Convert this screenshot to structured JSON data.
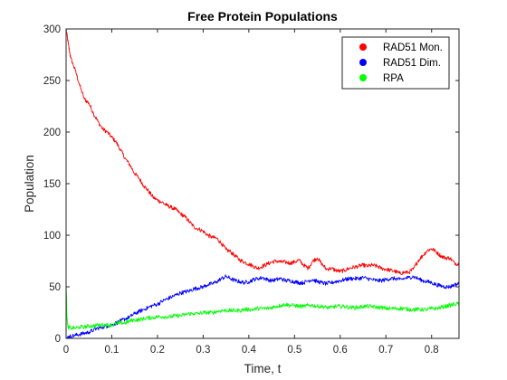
{
  "chart_data": {
    "type": "line",
    "title": "Free Protein Populations",
    "xlabel": "Time, t",
    "ylabel": "Population",
    "xlim": [
      0,
      0.86
    ],
    "ylim": [
      0,
      300
    ],
    "xticks": [
      0,
      0.1,
      0.2,
      0.3,
      0.4,
      0.5,
      0.6,
      0.7,
      0.8
    ],
    "yticks": [
      0,
      50,
      100,
      150,
      200,
      250,
      300
    ],
    "xtick_labels": [
      "0",
      "0.1",
      "0.2",
      "0.3",
      "0.4",
      "0.5",
      "0.6",
      "0.7",
      "0.8"
    ],
    "ytick_labels": [
      "0",
      "50",
      "100",
      "150",
      "200",
      "250",
      "300"
    ],
    "grid": false,
    "legend_position": "top-right",
    "series": [
      {
        "name": "RAD51 Mon.",
        "color": "#ff0000",
        "x": [
          0,
          0.005,
          0.01,
          0.02,
          0.03,
          0.04,
          0.05,
          0.06,
          0.07,
          0.08,
          0.09,
          0.1,
          0.11,
          0.12,
          0.13,
          0.14,
          0.15,
          0.16,
          0.17,
          0.18,
          0.19,
          0.2,
          0.21,
          0.22,
          0.23,
          0.24,
          0.25,
          0.26,
          0.27,
          0.28,
          0.29,
          0.3,
          0.31,
          0.32,
          0.33,
          0.34,
          0.35,
          0.36,
          0.37,
          0.38,
          0.39,
          0.4,
          0.41,
          0.42,
          0.43,
          0.44,
          0.45,
          0.46,
          0.47,
          0.48,
          0.49,
          0.5,
          0.51,
          0.52,
          0.53,
          0.54,
          0.55,
          0.56,
          0.57,
          0.58,
          0.59,
          0.6,
          0.61,
          0.62,
          0.63,
          0.64,
          0.65,
          0.66,
          0.67,
          0.68,
          0.69,
          0.7,
          0.71,
          0.72,
          0.73,
          0.74,
          0.75,
          0.76,
          0.77,
          0.78,
          0.79,
          0.8,
          0.81,
          0.82,
          0.83,
          0.84,
          0.85,
          0.86
        ],
        "y": [
          300,
          285,
          272,
          260,
          245,
          232,
          228,
          218,
          210,
          203,
          200,
          195,
          190,
          182,
          174,
          168,
          160,
          155,
          148,
          143,
          137,
          134,
          132,
          129,
          127,
          125,
          121,
          118,
          113,
          108,
          106,
          104,
          100,
          98,
          97,
          92,
          86,
          84,
          80,
          76,
          74,
          72,
          70,
          68,
          70,
          72,
          74,
          75,
          74,
          74,
          73,
          74,
          76,
          71,
          68,
          75,
          78,
          72,
          67,
          68,
          66,
          65,
          66,
          68,
          69,
          70,
          71,
          70,
          71,
          70,
          68,
          67,
          66,
          65,
          63,
          64,
          64,
          67,
          75,
          80,
          85,
          87,
          84,
          80,
          78,
          78,
          73,
          72
        ]
      },
      {
        "name": "RAD51 Dim.",
        "color": "#0000ff",
        "x": [
          0,
          0.005,
          0.01,
          0.02,
          0.03,
          0.04,
          0.05,
          0.06,
          0.07,
          0.08,
          0.09,
          0.1,
          0.11,
          0.12,
          0.13,
          0.14,
          0.15,
          0.16,
          0.17,
          0.18,
          0.19,
          0.2,
          0.21,
          0.22,
          0.23,
          0.24,
          0.25,
          0.26,
          0.27,
          0.28,
          0.29,
          0.3,
          0.31,
          0.32,
          0.33,
          0.34,
          0.35,
          0.36,
          0.37,
          0.38,
          0.39,
          0.4,
          0.41,
          0.42,
          0.43,
          0.44,
          0.45,
          0.46,
          0.47,
          0.48,
          0.49,
          0.5,
          0.51,
          0.52,
          0.53,
          0.54,
          0.55,
          0.56,
          0.57,
          0.58,
          0.59,
          0.6,
          0.61,
          0.62,
          0.63,
          0.64,
          0.65,
          0.66,
          0.67,
          0.68,
          0.69,
          0.7,
          0.71,
          0.72,
          0.73,
          0.74,
          0.75,
          0.76,
          0.77,
          0.78,
          0.79,
          0.8,
          0.81,
          0.82,
          0.83,
          0.84,
          0.85,
          0.86
        ],
        "y": [
          0,
          1,
          2,
          3,
          4,
          5,
          6,
          8,
          10,
          11,
          12,
          13,
          15,
          17,
          19,
          21,
          24,
          26,
          28,
          30,
          32,
          33,
          36,
          38,
          40,
          42,
          44,
          45,
          46,
          48,
          49,
          50,
          52,
          53,
          55,
          58,
          60,
          58,
          56,
          55,
          54,
          55,
          57,
          58,
          59,
          57,
          56,
          57,
          58,
          56,
          56,
          55,
          54,
          54,
          56,
          57,
          55,
          54,
          53,
          54,
          55,
          56,
          57,
          58,
          58,
          58,
          59,
          58,
          57,
          56,
          56,
          57,
          58,
          58,
          57,
          58,
          59,
          60,
          58,
          56,
          55,
          54,
          52,
          51,
          50,
          50,
          52,
          53
        ]
      },
      {
        "name": "RPA",
        "color": "#00ff00",
        "x": [
          0,
          0.002,
          0.004,
          0.01,
          0.02,
          0.03,
          0.04,
          0.05,
          0.06,
          0.07,
          0.08,
          0.09,
          0.1,
          0.11,
          0.12,
          0.13,
          0.14,
          0.15,
          0.16,
          0.17,
          0.18,
          0.19,
          0.2,
          0.21,
          0.22,
          0.23,
          0.24,
          0.25,
          0.26,
          0.27,
          0.28,
          0.29,
          0.3,
          0.31,
          0.32,
          0.33,
          0.34,
          0.35,
          0.36,
          0.37,
          0.38,
          0.39,
          0.4,
          0.41,
          0.42,
          0.43,
          0.44,
          0.45,
          0.46,
          0.47,
          0.48,
          0.49,
          0.5,
          0.51,
          0.52,
          0.53,
          0.54,
          0.55,
          0.56,
          0.57,
          0.58,
          0.59,
          0.6,
          0.61,
          0.62,
          0.63,
          0.64,
          0.65,
          0.66,
          0.67,
          0.68,
          0.69,
          0.7,
          0.71,
          0.72,
          0.73,
          0.74,
          0.75,
          0.76,
          0.77,
          0.78,
          0.79,
          0.8,
          0.81,
          0.82,
          0.83,
          0.84,
          0.85,
          0.86
        ],
        "y": [
          55,
          20,
          11,
          10,
          10,
          11,
          11,
          12,
          12,
          13,
          13,
          13,
          13,
          14,
          15,
          15,
          17,
          18,
          18,
          19,
          20,
          20,
          21,
          21,
          21,
          21,
          22,
          22,
          23,
          24,
          24,
          24,
          25,
          25,
          25,
          26,
          27,
          27,
          27,
          27,
          27,
          28,
          28,
          28,
          29,
          29,
          29,
          30,
          31,
          32,
          33,
          32,
          32,
          31,
          31,
          32,
          32,
          31,
          31,
          30,
          30,
          31,
          31,
          31,
          30,
          30,
          30,
          31,
          31,
          31,
          30,
          30,
          29,
          29,
          29,
          29,
          29,
          28,
          28,
          28,
          28,
          28,
          29,
          29,
          30,
          31,
          32,
          33,
          34
        ]
      }
    ]
  }
}
